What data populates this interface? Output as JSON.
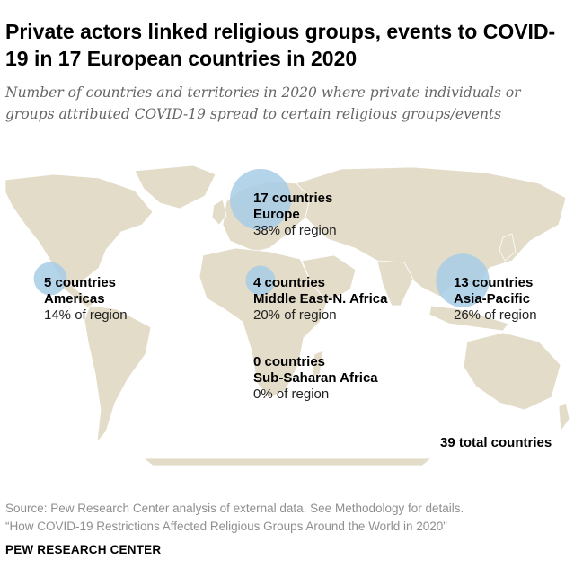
{
  "header": {
    "title": "Private actors linked religious groups, events to COVID-19 in 17 European countries in 2020",
    "subtitle": "Number of countries and territories in 2020 where private individuals or groups attributed COVID-19 spread to certain religious groups/events"
  },
  "chart_data": {
    "type": "bubble-map",
    "title": "Private actors linked religious groups, events to COVID-19 in 17 European countries in 2020",
    "bubble_color": "#a7cde6",
    "land_color": "#e3dcc8",
    "regions": [
      {
        "name": "Europe",
        "count": 17,
        "count_label": "17 countries",
        "pct": 38,
        "pct_label": "38% of region"
      },
      {
        "name": "Americas",
        "count": 5,
        "count_label": "5 countries",
        "pct": 14,
        "pct_label": "14% of region"
      },
      {
        "name": "Middle East-N. Africa",
        "count": 4,
        "count_label": "4 countries",
        "pct": 20,
        "pct_label": "20% of region"
      },
      {
        "name": "Asia-Pacific",
        "count": 13,
        "count_label": "13 countries",
        "pct": 26,
        "pct_label": "26% of region"
      },
      {
        "name": "Sub-Saharan Africa",
        "count": 0,
        "count_label": "0 countries",
        "pct": 0,
        "pct_label": "0% of region"
      }
    ],
    "total_label": "39 total countries"
  },
  "footer": {
    "source": "Source: Pew Research Center analysis of external data. See Methodology for details.",
    "report": "“How COVID-19 Restrictions Affected Religious Groups Around the World in 2020”",
    "brand": "PEW RESEARCH CENTER"
  }
}
